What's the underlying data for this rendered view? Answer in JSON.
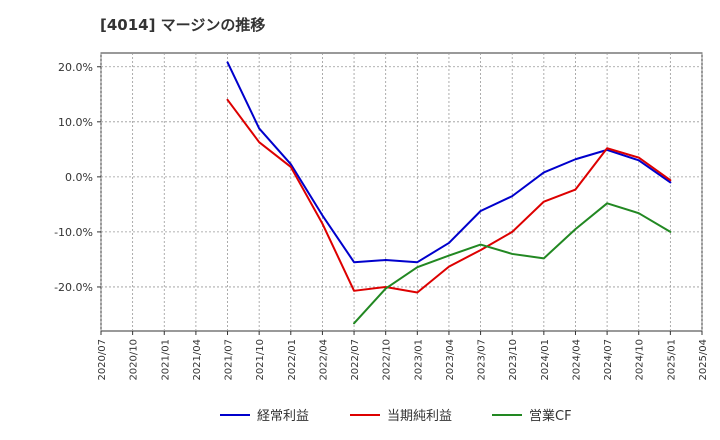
{
  "chart_data": {
    "type": "line",
    "title": "[4014]  マージンの推移",
    "xlabel": "",
    "ylabel": "",
    "ylim": [
      -28,
      22.5
    ],
    "y_ticks": [
      20,
      10,
      0,
      -10,
      -20
    ],
    "y_tick_labels": [
      "20.0%",
      "10.0%",
      "0.0%",
      "-10.0%",
      "-20.0%"
    ],
    "x_tick_labels": [
      "2020/07",
      "2020/10",
      "2021/01",
      "2021/04",
      "2021/07",
      "2021/10",
      "2022/01",
      "2022/04",
      "2022/07",
      "2022/10",
      "2023/01",
      "2023/04",
      "2023/07",
      "2023/10",
      "2024/01",
      "2024/04",
      "2024/07",
      "2024/10",
      "2025/01",
      "2025/04"
    ],
    "grid": true,
    "series": [
      {
        "name": "経常利益",
        "color": "#0000cc",
        "values": [
          null,
          null,
          null,
          null,
          20.8,
          8.8,
          2.3,
          -7.0,
          -15.5,
          -15.1,
          -15.5,
          -12.0,
          -6.2,
          -3.5,
          0.8,
          3.2,
          4.9,
          3.0,
          -1.0
        ]
      },
      {
        "name": "当期純利益",
        "color": "#dd0000",
        "values": [
          null,
          null,
          null,
          null,
          14.0,
          6.3,
          1.8,
          -8.5,
          -20.7,
          -20.0,
          -21.0,
          -16.3,
          -13.3,
          -10.0,
          -4.5,
          -2.3,
          5.2,
          3.5,
          -0.6
        ]
      },
      {
        "name": "営業CF",
        "color": "#228822",
        "values": [
          null,
          null,
          null,
          null,
          null,
          null,
          null,
          null,
          -26.6,
          -20.3,
          -16.4,
          -14.3,
          -12.3,
          -14.0,
          -14.8,
          -9.5,
          -4.8,
          -6.6,
          -10.0
        ]
      }
    ]
  }
}
